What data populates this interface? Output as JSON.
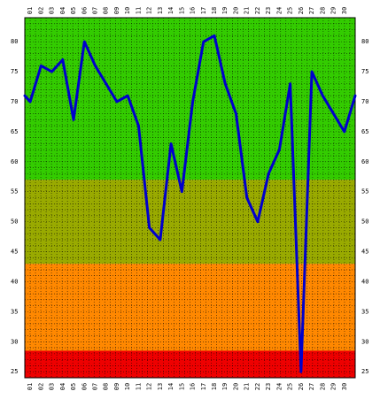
{
  "chart_data": {
    "type": "line",
    "title": "",
    "xlabel": "",
    "ylabel": "",
    "x": [
      "01",
      "02",
      "03",
      "04",
      "05",
      "06",
      "07",
      "08",
      "09",
      "10",
      "11",
      "12",
      "13",
      "14",
      "15",
      "16",
      "17",
      "18",
      "19",
      "20",
      "21",
      "22",
      "23",
      "24",
      "25",
      "26",
      "27",
      "28",
      "29",
      "30"
    ],
    "y_ticks": [
      25,
      30,
      35,
      40,
      45,
      50,
      55,
      60,
      65,
      70,
      75,
      80
    ],
    "ylim": [
      24,
      84
    ],
    "grid": true,
    "bands": [
      {
        "from": 57,
        "to": 84,
        "color": "#33cc00"
      },
      {
        "from": 43,
        "to": 57,
        "color": "#99aa00"
      },
      {
        "from": 28.5,
        "to": 43,
        "color": "#ff8800"
      },
      {
        "from": 24,
        "to": 28.5,
        "color": "#ee0000"
      }
    ],
    "series": [
      {
        "name": "",
        "color": "#0000cc",
        "points": [
          [
            0.5,
            71
          ],
          [
            1,
            70
          ],
          [
            2,
            76
          ],
          [
            3,
            75
          ],
          [
            4,
            77
          ],
          [
            5,
            67
          ],
          [
            6,
            80
          ],
          [
            7,
            76
          ],
          [
            8,
            73
          ],
          [
            9,
            70
          ],
          [
            10,
            71
          ],
          [
            11,
            66
          ],
          [
            12,
            49
          ],
          [
            13,
            47
          ],
          [
            14,
            63
          ],
          [
            15,
            55
          ],
          [
            16,
            70
          ],
          [
            17,
            80
          ],
          [
            18,
            81
          ],
          [
            19,
            73
          ],
          [
            20,
            68
          ],
          [
            21,
            54
          ],
          [
            22,
            50
          ],
          [
            23,
            58
          ],
          [
            24,
            62
          ],
          [
            25,
            73
          ],
          [
            26,
            25
          ],
          [
            27,
            75
          ],
          [
            28,
            71
          ],
          [
            30,
            65
          ],
          [
            31,
            71
          ]
        ]
      }
    ]
  }
}
